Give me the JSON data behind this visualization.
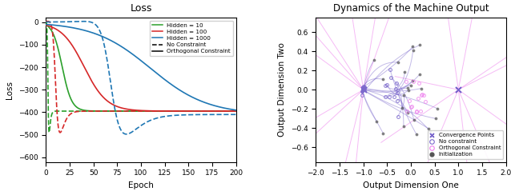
{
  "title_left": "Loss",
  "title_right": "Dynamics of the Machine Output",
  "xlabel_left": "Epoch",
  "ylabel_left": "Loss",
  "xlabel_right": "Output Dimension One",
  "ylabel_right": "Output Dimension Two",
  "ylim_left": [
    -620,
    20
  ],
  "xlim_left": [
    0,
    200
  ],
  "xlim_right": [
    -2.0,
    2.0
  ],
  "ylim_right": [
    -0.75,
    0.75
  ],
  "colors": {
    "green": "#2ca02c",
    "red": "#d62728",
    "blue": "#1f77b4",
    "purple": "#7B68CC",
    "pink": "#EE82EE",
    "dark": "#555555"
  },
  "loss_final": -400,
  "legend_left": [
    {
      "label": "Hidden = 10",
      "color": "#2ca02c",
      "linestyle": "solid"
    },
    {
      "label": "Hidden = 100",
      "color": "#d62728",
      "linestyle": "solid"
    },
    {
      "label": "Hidden = 1000",
      "color": "#1f77b4",
      "linestyle": "solid"
    },
    {
      "label": "No Constraint",
      "color": "black",
      "linestyle": "dashed"
    },
    {
      "label": "Orthogonal Constraint",
      "color": "black",
      "linestyle": "solid"
    }
  ],
  "legend_right": [
    {
      "label": "Convergence Points",
      "marker": "x",
      "color": "#7B68CC"
    },
    {
      "label": "No constraint",
      "marker": "o",
      "color": "#7B68CC"
    },
    {
      "label": "Orthogonal Constraint",
      "marker": "o",
      "color": "#EE82EE"
    },
    {
      "label": "Initialization",
      "marker": "o",
      "color": "#555555"
    }
  ]
}
